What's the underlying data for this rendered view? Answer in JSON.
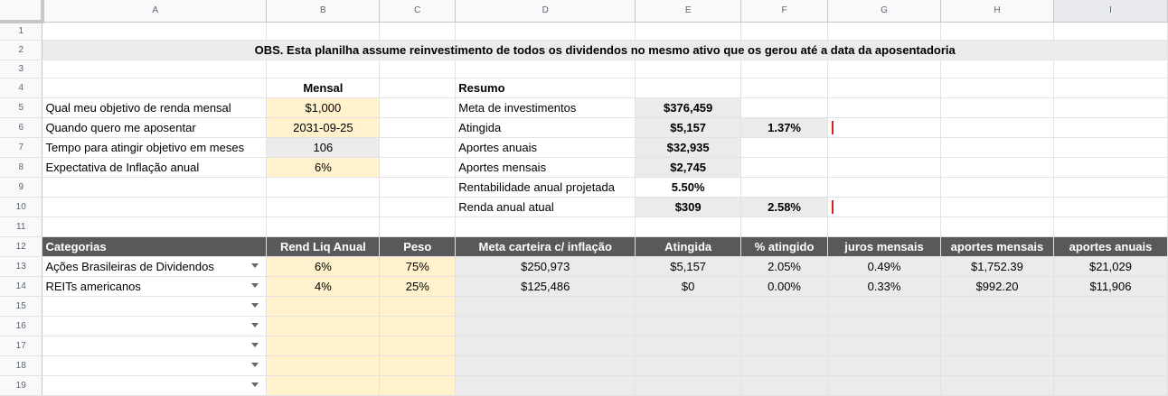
{
  "columns": [
    "A",
    "B",
    "C",
    "D",
    "E",
    "F",
    "G",
    "H",
    "I"
  ],
  "rows": [
    "1",
    "2",
    "3",
    "4",
    "5",
    "6",
    "7",
    "8",
    "9",
    "10",
    "11",
    "12",
    "13",
    "14",
    "15",
    "16",
    "17",
    "18",
    "19"
  ],
  "note": "OBS. Esta planilha assume reinvestimento de todos os dividendos no mesmo ativo que os gerou até a data da aposentadoria",
  "inputs": {
    "header": "Mensal",
    "items": [
      {
        "label": "Qual meu objetivo de renda mensal",
        "value": "$1,000"
      },
      {
        "label": "Quando quero me aposentar",
        "value": "2031-09-25"
      },
      {
        "label": "Tempo para atingir objetivo em meses",
        "value": "106"
      },
      {
        "label": "Expectativa de Inflação anual",
        "value": "6%"
      }
    ]
  },
  "resumo": {
    "header": "Resumo",
    "items": [
      {
        "label": "Meta de investimentos",
        "value": "$376,459",
        "pct": ""
      },
      {
        "label": "Atingida",
        "value": "$5,157",
        "pct": "1.37%",
        "bar_fraction": 0.0137
      },
      {
        "label": "Aportes anuais",
        "value": "$32,935",
        "pct": ""
      },
      {
        "label": "Aportes mensais",
        "value": "$2,745",
        "pct": ""
      },
      {
        "label": "Rentabilidade anual projetada",
        "value": "5.50%",
        "pct": ""
      },
      {
        "label": "Renda anual atual",
        "value": "$309",
        "pct": "2.58%",
        "bar_fraction": 0.0258
      }
    ]
  },
  "table": {
    "headers": [
      "Categorias",
      "Rend Liq Anual",
      "Peso",
      "Meta carteira c/ inflação",
      "Atingida",
      "% atingido",
      "juros mensais",
      "aportes mensais",
      "aportes anuais"
    ],
    "rows": [
      [
        "Ações Brasileiras de Dividendos",
        "6%",
        "75%",
        "$250,973",
        "$5,157",
        "2.05%",
        "0.49%",
        "$1,752.39",
        "$21,029"
      ],
      [
        "REITs americanos",
        "4%",
        "25%",
        "$125,486",
        "$0",
        "0.00%",
        "0.33%",
        "$992.20",
        "$11,906"
      ]
    ]
  },
  "colors": {
    "input_fill": "#fff2cc",
    "calc_fill": "#ebebeb",
    "header_fill": "#595959",
    "bar": "#e0191a"
  }
}
